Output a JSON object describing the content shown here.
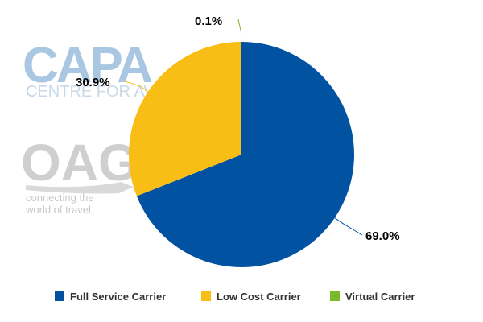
{
  "watermarks": {
    "capa_logo_text": "CAPA",
    "capa_subtitle": "CENTRE FOR AVIATION",
    "oag_logo_text": "OAG",
    "oag_tagline_1": "connecting the",
    "oag_tagline_2": "world of travel"
  },
  "chart_data": {
    "type": "pie",
    "title": "",
    "legend_position": "bottom",
    "slices": [
      {
        "name": "Full Service Carrier",
        "value": 69.0,
        "label": "69.0%",
        "color": "#0152a1"
      },
      {
        "name": "Low Cost Carrier",
        "value": 30.9,
        "label": "30.9%",
        "color": "#f9be16"
      },
      {
        "name": "Virtual Carrier",
        "value": 0.1,
        "label": "0.1%",
        "color": "#7ab929"
      }
    ]
  }
}
